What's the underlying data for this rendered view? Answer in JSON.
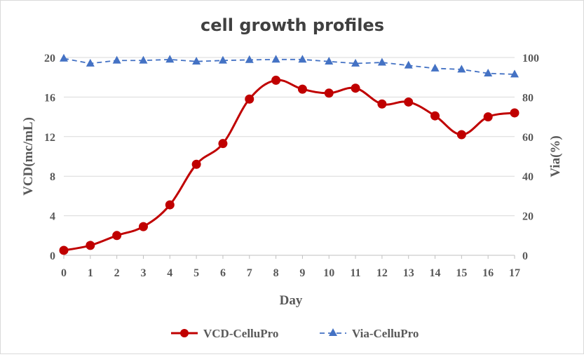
{
  "chart_data": {
    "type": "line",
    "title": "cell growth profiles",
    "xlabel": "Day",
    "ylabel_left": "VCD(mc/mL)",
    "ylabel_right": "Via(%)",
    "x": [
      0,
      1,
      2,
      3,
      4,
      5,
      6,
      7,
      8,
      9,
      10,
      11,
      12,
      13,
      14,
      15,
      16,
      17
    ],
    "x_ticks": [
      "0",
      "1",
      "2",
      "3",
      "4",
      "5",
      "6",
      "7",
      "8",
      "9",
      "10",
      "11",
      "12",
      "13",
      "14",
      "15",
      "16",
      "17"
    ],
    "ylim_left": [
      0,
      20
    ],
    "yticks_left": [
      "0",
      "4",
      "8",
      "12",
      "16",
      "20"
    ],
    "ylim_right": [
      0,
      100
    ],
    "yticks_right": [
      "0",
      "20",
      "40",
      "60",
      "80",
      "100"
    ],
    "grid": "horizontal",
    "legend_position": "bottom",
    "series": [
      {
        "name": "VCD-CelluPro",
        "axis": "left",
        "color": "#c00000",
        "marker": "circle",
        "line_style": "solid-smooth",
        "values": [
          0.5,
          1.0,
          2.0,
          2.9,
          5.1,
          9.2,
          11.3,
          15.8,
          17.7,
          16.8,
          16.4,
          16.9,
          15.3,
          15.5,
          14.1,
          12.2,
          14.0,
          14.4
        ]
      },
      {
        "name": "Via-CelluPro",
        "axis": "right",
        "color": "#4472c4",
        "marker": "triangle",
        "line_style": "dashed",
        "values": [
          99.5,
          97.0,
          98.5,
          98.5,
          99.0,
          98.0,
          98.5,
          98.8,
          99.0,
          99.0,
          98.0,
          97.0,
          97.5,
          96.0,
          94.5,
          94.0,
          92.0,
          91.5
        ]
      }
    ]
  }
}
